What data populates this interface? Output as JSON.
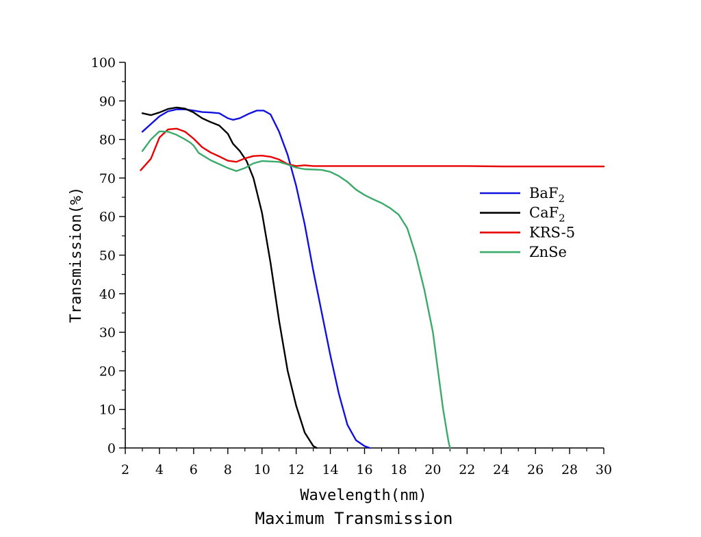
{
  "caption": "Maximum Transmission",
  "chart_data": {
    "type": "line",
    "xlabel": "Wavelength(nm)",
    "ylabel": "Transmission(%)",
    "xlim": [
      2,
      30
    ],
    "ylim": [
      0,
      100
    ],
    "xticks": [
      2,
      4,
      6,
      8,
      10,
      12,
      14,
      16,
      18,
      20,
      22,
      24,
      26,
      28,
      30
    ],
    "yticks": [
      0,
      10,
      20,
      30,
      40,
      50,
      60,
      70,
      80,
      90,
      100
    ],
    "grid": false,
    "legend_position": "right",
    "series": [
      {
        "name": "BaF2",
        "label_base": "BaF",
        "label_sub": "2",
        "color": "#1010e0",
        "points": [
          [
            3,
            82
          ],
          [
            3.5,
            84
          ],
          [
            4,
            86
          ],
          [
            4.5,
            87.3
          ],
          [
            5,
            87.8
          ],
          [
            5.5,
            87.8
          ],
          [
            6,
            87.5
          ],
          [
            6.5,
            87.1
          ],
          [
            7,
            87
          ],
          [
            7.5,
            86.8
          ],
          [
            8,
            85.5
          ],
          [
            8.3,
            85.1
          ],
          [
            8.7,
            85.5
          ],
          [
            9.2,
            86.6
          ],
          [
            9.7,
            87.5
          ],
          [
            10.1,
            87.5
          ],
          [
            10.5,
            86.5
          ],
          [
            11,
            82
          ],
          [
            11.5,
            76
          ],
          [
            12,
            68
          ],
          [
            12.5,
            58
          ],
          [
            13,
            46
          ],
          [
            13.5,
            35
          ],
          [
            14,
            24
          ],
          [
            14.5,
            14
          ],
          [
            15,
            6
          ],
          [
            15.5,
            2
          ],
          [
            16,
            0.5
          ],
          [
            16.3,
            0
          ]
        ]
      },
      {
        "name": "CaF2",
        "label_base": "CaF",
        "label_sub": "2",
        "color": "#000000",
        "points": [
          [
            3,
            86.8
          ],
          [
            3.5,
            86.3
          ],
          [
            4,
            87
          ],
          [
            4.5,
            87.9
          ],
          [
            5,
            88.3
          ],
          [
            5.5,
            88
          ],
          [
            6,
            87
          ],
          [
            6.5,
            85.5
          ],
          [
            7,
            84.5
          ],
          [
            7.5,
            83.6
          ],
          [
            8,
            81.5
          ],
          [
            8.3,
            78.9
          ],
          [
            8.7,
            77
          ],
          [
            9.1,
            74.4
          ],
          [
            9.5,
            70
          ],
          [
            10,
            61
          ],
          [
            10.5,
            48
          ],
          [
            11,
            33
          ],
          [
            11.5,
            20
          ],
          [
            12,
            11
          ],
          [
            12.5,
            4
          ],
          [
            13,
            0.5
          ],
          [
            13.2,
            0
          ]
        ]
      },
      {
        "name": "KRS-5",
        "label_base": "KRS-5",
        "label_sub": "",
        "color": "#e80000",
        "points": [
          [
            2.9,
            72
          ],
          [
            3.5,
            75
          ],
          [
            4,
            80.5
          ],
          [
            4.5,
            82.6
          ],
          [
            5,
            82.8
          ],
          [
            5.5,
            82
          ],
          [
            6,
            80.2
          ],
          [
            6.5,
            78
          ],
          [
            7,
            76.6
          ],
          [
            7.5,
            75.6
          ],
          [
            8,
            74.5
          ],
          [
            8.5,
            74.2
          ],
          [
            9,
            75.1
          ],
          [
            9.5,
            75.7
          ],
          [
            10,
            75.8
          ],
          [
            10.5,
            75.5
          ],
          [
            11,
            74.8
          ],
          [
            11.5,
            73.6
          ],
          [
            12,
            73.1
          ],
          [
            12.5,
            73.3
          ],
          [
            13,
            73.1
          ],
          [
            14,
            73.1
          ],
          [
            16,
            73.1
          ],
          [
            18,
            73.1
          ],
          [
            20,
            73.1
          ],
          [
            22,
            73.1
          ],
          [
            24,
            73
          ],
          [
            26,
            73
          ],
          [
            28,
            73
          ],
          [
            30,
            73
          ]
        ]
      },
      {
        "name": "ZnSe",
        "label_base": "ZnSe",
        "label_sub": "",
        "color": "#3aaa6a",
        "points": [
          [
            3,
            77
          ],
          [
            3.5,
            80
          ],
          [
            4,
            82.1
          ],
          [
            4.5,
            82
          ],
          [
            5,
            81.2
          ],
          [
            5.5,
            80
          ],
          [
            5.8,
            79.2
          ],
          [
            6,
            78.4
          ],
          [
            6.3,
            76.5
          ],
          [
            7,
            74.6
          ],
          [
            7.5,
            73.6
          ],
          [
            8,
            72.6
          ],
          [
            8.5,
            71.8
          ],
          [
            9,
            72.6
          ],
          [
            9.5,
            73.8
          ],
          [
            10,
            74.4
          ],
          [
            11,
            74.2
          ],
          [
            11.5,
            73.5
          ],
          [
            12,
            72.7
          ],
          [
            12.5,
            72.3
          ],
          [
            13,
            72.2
          ],
          [
            13.5,
            72.1
          ],
          [
            14,
            71.6
          ],
          [
            14.5,
            70.5
          ],
          [
            15,
            69
          ],
          [
            15.5,
            67
          ],
          [
            16,
            65.6
          ],
          [
            16.5,
            64.5
          ],
          [
            17,
            63.5
          ],
          [
            17.5,
            62.2
          ],
          [
            18,
            60.5
          ],
          [
            18.5,
            57
          ],
          [
            19,
            50
          ],
          [
            19.5,
            41
          ],
          [
            20,
            30
          ],
          [
            20.3,
            20
          ],
          [
            20.6,
            10
          ],
          [
            20.9,
            2
          ],
          [
            21,
            0
          ]
        ]
      }
    ]
  }
}
